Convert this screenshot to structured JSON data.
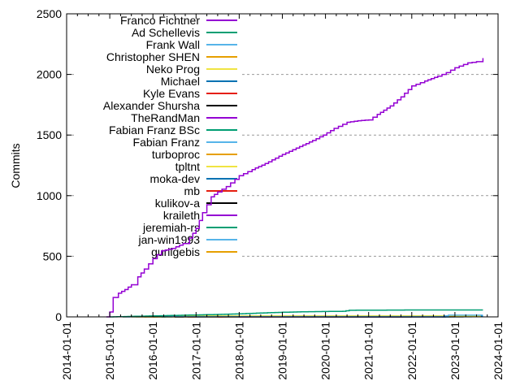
{
  "chart_data": {
    "type": "line",
    "title": "",
    "xlabel": "",
    "ylabel": "Commits",
    "x_tick_labels": [
      "2014-01-01",
      "2015-01-01",
      "2016-01-01",
      "2017-01-01",
      "2018-01-01",
      "2019-01-01",
      "2020-01-01",
      "2021-01-01",
      "2022-01-01",
      "2023-01-01",
      "2024-01-01"
    ],
    "xlim_years": [
      2014,
      2024
    ],
    "y_ticks": [
      0,
      500,
      1000,
      1500,
      2000,
      2500
    ],
    "ylim": [
      0,
      2500
    ],
    "grid": {
      "horizontal_at": [
        500,
        1000,
        1500,
        2000
      ],
      "style": "dashed",
      "color": "#999999"
    },
    "legend": {
      "position": "top-left-inside",
      "entries": [
        "Franco Fichtner",
        "Ad Schellevis",
        "Frank Wall",
        "Christopher SHEN",
        "Neko Prog",
        "Michael",
        "Kyle Evans",
        "Alexander Shursha",
        "TheRandMan",
        "Fabian Franz BSc",
        "Fabian Franz",
        "turboproc",
        "tpltnt",
        "moka-dev",
        "mb",
        "kulikov-a",
        "kraileth",
        "jeremiah-rs",
        "jan-win1993",
        "gurligebis"
      ]
    },
    "palette_cycle": [
      "#9400d3",
      "#009e73",
      "#56b4e9",
      "#e69f00",
      "#f0e442",
      "#0072b2",
      "#e51e10",
      "#000000"
    ],
    "series": [
      {
        "name": "Franco Fichtner",
        "color": "#9400d3",
        "points": [
          [
            2014.92,
            0
          ],
          [
            2015.0,
            40
          ],
          [
            2015.08,
            160
          ],
          [
            2015.2,
            195
          ],
          [
            2015.35,
            225
          ],
          [
            2015.5,
            265
          ],
          [
            2015.65,
            330
          ],
          [
            2015.8,
            395
          ],
          [
            2016.0,
            480
          ],
          [
            2016.2,
            545
          ],
          [
            2016.45,
            565
          ],
          [
            2016.7,
            605
          ],
          [
            2016.85,
            650
          ],
          [
            2017.0,
            730
          ],
          [
            2017.15,
            860
          ],
          [
            2017.35,
            990
          ],
          [
            2017.5,
            1030
          ],
          [
            2017.7,
            1075
          ],
          [
            2018.0,
            1165
          ],
          [
            2018.3,
            1215
          ],
          [
            2018.6,
            1265
          ],
          [
            2019.0,
            1340
          ],
          [
            2019.4,
            1405
          ],
          [
            2019.7,
            1455
          ],
          [
            2019.95,
            1500
          ],
          [
            2020.2,
            1555
          ],
          [
            2020.5,
            1605
          ],
          [
            2020.75,
            1618
          ],
          [
            2021.0,
            1625
          ],
          [
            2021.2,
            1670
          ],
          [
            2021.5,
            1740
          ],
          [
            2021.75,
            1815
          ],
          [
            2022.0,
            1905
          ],
          [
            2022.3,
            1945
          ],
          [
            2022.6,
            1985
          ],
          [
            2022.8,
            2015
          ],
          [
            2023.0,
            2055
          ],
          [
            2023.3,
            2095
          ],
          [
            2023.5,
            2105
          ],
          [
            2023.65,
            2135
          ]
        ]
      },
      {
        "name": "Ad Schellevis",
        "color": "#009e73",
        "points": [
          [
            2015.0,
            0
          ],
          [
            2015.5,
            4
          ],
          [
            2016.0,
            8
          ],
          [
            2016.5,
            12
          ],
          [
            2017.0,
            16
          ],
          [
            2017.5,
            20
          ],
          [
            2018.0,
            25
          ],
          [
            2018.4,
            31
          ],
          [
            2019.0,
            38
          ],
          [
            2019.6,
            43
          ],
          [
            2020.4,
            46
          ],
          [
            2020.55,
            54
          ],
          [
            2021.5,
            56
          ],
          [
            2022.0,
            57
          ],
          [
            2023.65,
            57
          ]
        ]
      },
      {
        "name": "Frank Wall",
        "color": "#56b4e9",
        "points": [
          [
            2015.3,
            0
          ],
          [
            2016.0,
            2
          ],
          [
            2018.0,
            3
          ],
          [
            2022.7,
            3
          ],
          [
            2022.75,
            9
          ],
          [
            2022.85,
            14
          ],
          [
            2023.65,
            14
          ]
        ]
      },
      {
        "name": "Christopher SHEN",
        "color": "#e69f00",
        "points": [
          [
            2016.0,
            0
          ],
          [
            2016.3,
            2
          ],
          [
            2023.0,
            2
          ]
        ]
      },
      {
        "name": "Neko Prog",
        "color": "#f0e442",
        "points": [
          [
            2015.3,
            0
          ],
          [
            2015.6,
            5
          ],
          [
            2016.0,
            7
          ],
          [
            2016.3,
            8
          ],
          [
            2023.6,
            8
          ]
        ]
      },
      {
        "name": "Michael",
        "color": "#0072b2",
        "points": [
          [
            2022.7,
            0
          ],
          [
            2022.78,
            9
          ],
          [
            2023.65,
            9
          ]
        ]
      },
      {
        "name": "Kyle Evans",
        "color": "#e51e10",
        "points": [
          [
            2017.5,
            0
          ],
          [
            2017.8,
            2
          ],
          [
            2022.5,
            2
          ]
        ]
      },
      {
        "name": "Alexander Shursha",
        "color": "#000000",
        "points": [
          [
            2016.5,
            0
          ],
          [
            2016.8,
            1
          ],
          [
            2022.0,
            1
          ]
        ]
      },
      {
        "name": "TheRandMan",
        "color": "#9400d3",
        "points": [
          [
            2018.0,
            0
          ],
          [
            2018.3,
            1
          ],
          [
            2022.8,
            1
          ]
        ]
      },
      {
        "name": "Fabian Franz BSc",
        "color": "#009e73",
        "points": [
          [
            2016.2,
            0
          ],
          [
            2016.6,
            2
          ],
          [
            2022.6,
            2
          ]
        ]
      },
      {
        "name": "Fabian Franz",
        "color": "#56b4e9",
        "points": [
          [
            2017.0,
            0
          ],
          [
            2017.4,
            1
          ],
          [
            2021.5,
            1
          ]
        ]
      },
      {
        "name": "turboproc",
        "color": "#e69f00",
        "points": [
          [
            2015.8,
            0
          ],
          [
            2016.2,
            1
          ],
          [
            2021.0,
            1
          ]
        ]
      },
      {
        "name": "tpltnt",
        "color": "#f0e442",
        "points": [
          [
            2015.5,
            0
          ],
          [
            2016.0,
            4
          ],
          [
            2023.3,
            5
          ]
        ]
      },
      {
        "name": "moka-dev",
        "color": "#0072b2",
        "points": [
          [
            2019.0,
            0
          ],
          [
            2019.4,
            1
          ],
          [
            2023.0,
            1
          ]
        ]
      },
      {
        "name": "mb",
        "color": "#e51e10",
        "points": [
          [
            2016.8,
            0
          ],
          [
            2017.2,
            1
          ],
          [
            2020.5,
            1
          ]
        ]
      },
      {
        "name": "kulikov-a",
        "color": "#000000",
        "points": [
          [
            2020.0,
            0
          ],
          [
            2020.4,
            1
          ],
          [
            2023.2,
            1
          ]
        ]
      },
      {
        "name": "kraileth",
        "color": "#9400d3",
        "points": [
          [
            2018.5,
            0
          ],
          [
            2018.9,
            1
          ],
          [
            2021.8,
            1
          ]
        ]
      },
      {
        "name": "jeremiah-rs",
        "color": "#009e73",
        "points": [
          [
            2019.5,
            0
          ],
          [
            2019.9,
            1
          ],
          [
            2022.9,
            1
          ]
        ]
      },
      {
        "name": "jan-win1993",
        "color": "#56b4e9",
        "points": [
          [
            2020.5,
            0
          ],
          [
            2020.9,
            1
          ],
          [
            2023.4,
            1
          ]
        ]
      },
      {
        "name": "gurligebis",
        "color": "#e69f00",
        "points": [
          [
            2015.6,
            0
          ],
          [
            2016.0,
            1
          ],
          [
            2022.3,
            1
          ]
        ]
      }
    ]
  }
}
